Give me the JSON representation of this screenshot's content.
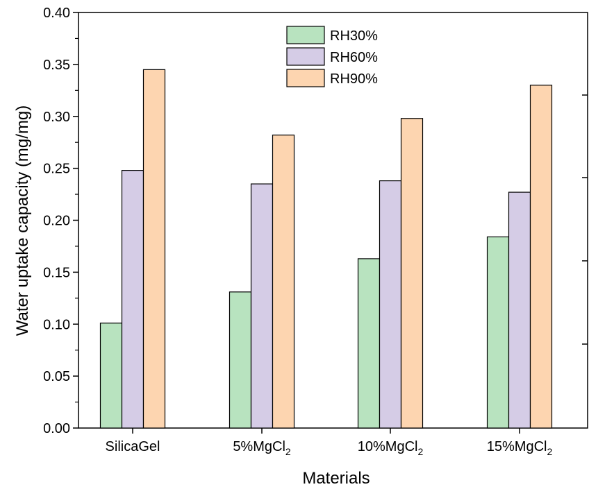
{
  "chart_data": {
    "type": "bar",
    "xlabel": "Materials",
    "ylabel": "Water uptake capacity (mg/mg)",
    "ylim": [
      0,
      0.4
    ],
    "yticks": [
      "0.00",
      "0.05",
      "0.10",
      "0.15",
      "0.20",
      "0.25",
      "0.30",
      "0.35",
      "0.40"
    ],
    "categories": [
      {
        "base": "SilicaGel",
        "sub": ""
      },
      {
        "base": "5%MgCl",
        "sub": "2"
      },
      {
        "base": "10%MgCl",
        "sub": "2"
      },
      {
        "base": "15%MgCl",
        "sub": "2"
      }
    ],
    "series": [
      {
        "name": "RH30%",
        "color": "#b8e3bf",
        "values": [
          0.101,
          0.131,
          0.163,
          0.184
        ]
      },
      {
        "name": "RH60%",
        "color": "#d5cce6",
        "values": [
          0.248,
          0.235,
          0.238,
          0.227
        ]
      },
      {
        "name": "RH90%",
        "color": "#fdd5b0",
        "values": [
          0.345,
          0.282,
          0.298,
          0.33
        ]
      }
    ],
    "legend_position": "top-center",
    "grid": false
  }
}
